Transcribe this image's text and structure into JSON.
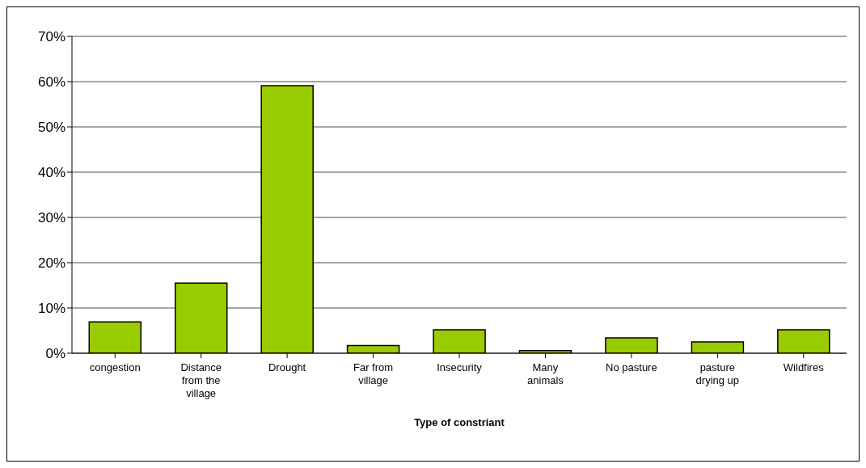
{
  "chart_data": {
    "type": "bar",
    "xlabel": "Type of constriant",
    "categories": [
      "congestion",
      "Distance from the village",
      "Drought",
      "Far from village",
      "Insecurity",
      "Many animals",
      "No pasture",
      "pasture drying up",
      "Wildfires"
    ],
    "values": [
      6.9,
      15.5,
      59.1,
      1.7,
      5.2,
      0.6,
      3.4,
      2.5,
      5.2
    ],
    "color": "#99cc00",
    "ylim": [
      0,
      70
    ],
    "yticks": [
      {
        "value": 0,
        "label": "0%"
      },
      {
        "value": 10,
        "label": "10%"
      },
      {
        "value": 20,
        "label": "20%"
      },
      {
        "value": 30,
        "label": "30%"
      },
      {
        "value": 40,
        "label": "40%"
      },
      {
        "value": 50,
        "label": "50%"
      },
      {
        "value": 60,
        "label": "60%"
      },
      {
        "value": 70,
        "label": "70%"
      }
    ],
    "grid": "y",
    "legend": false
  }
}
